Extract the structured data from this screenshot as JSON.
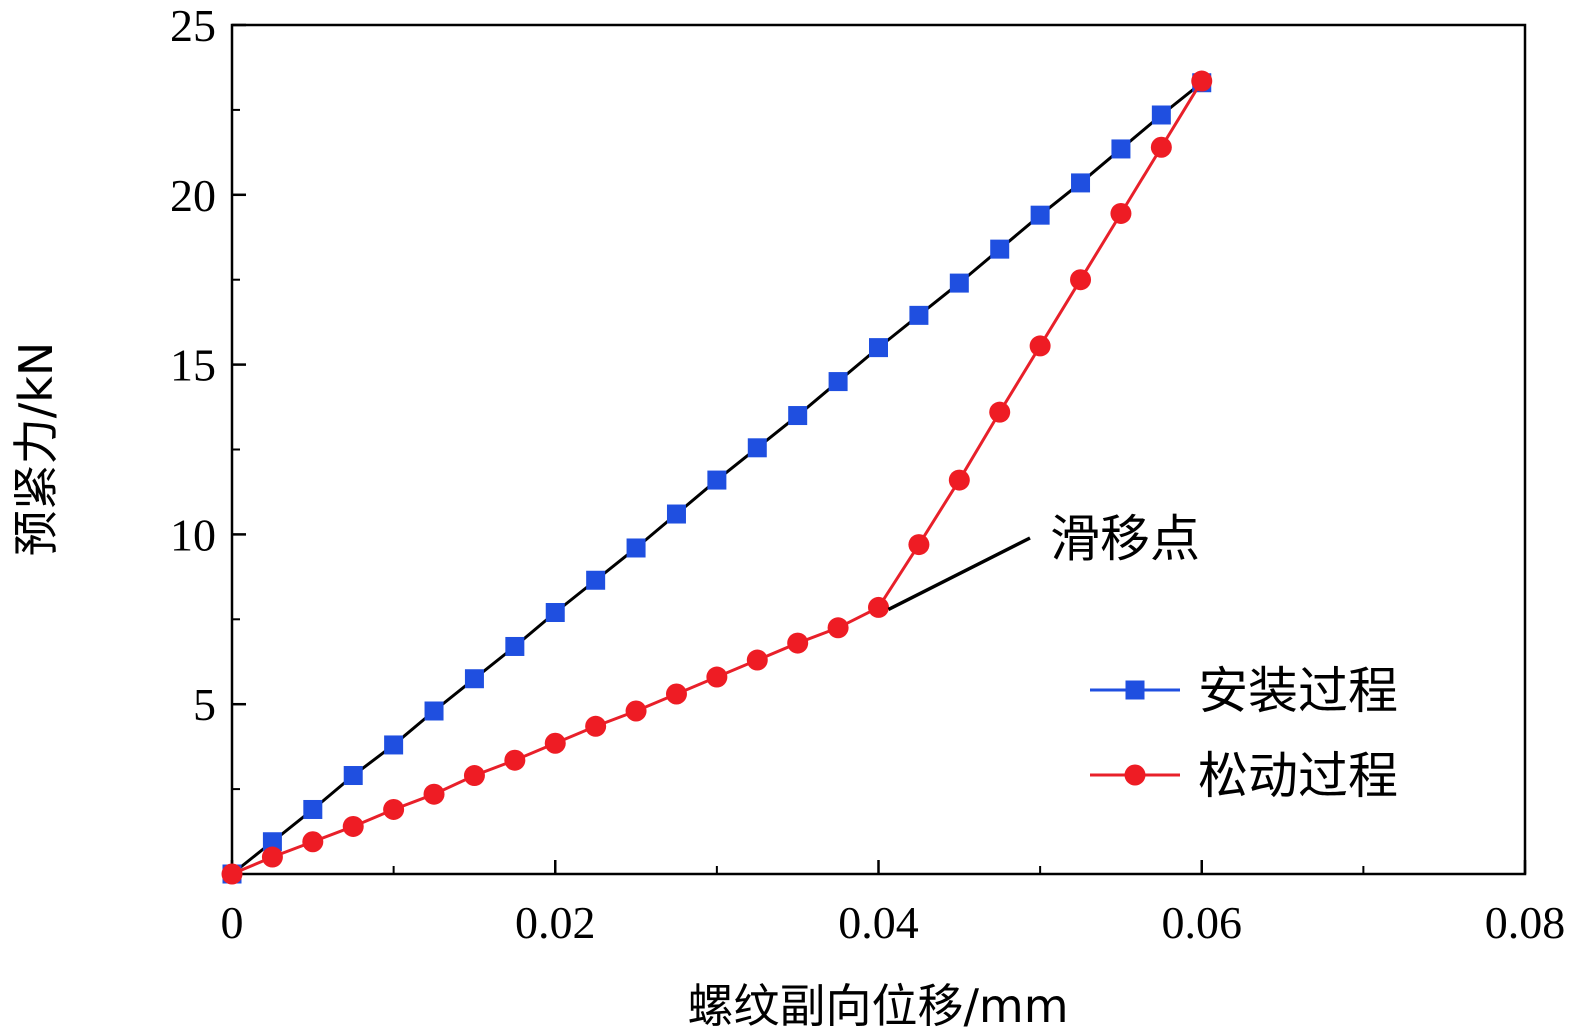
{
  "chart_data": {
    "type": "line",
    "title": "",
    "xlabel": "螺纹副向位移/mm",
    "ylabel": "预紧力/kN",
    "xlim": [
      0,
      0.08
    ],
    "ylim": [
      0,
      25
    ],
    "xticks": [
      0,
      0.02,
      0.04,
      0.06,
      0.08
    ],
    "xtick_labels": [
      "0",
      "0.02",
      "0.04",
      "0.06",
      "0.08"
    ],
    "yticks": [
      5,
      10,
      15,
      20,
      25
    ],
    "ytick_labels": [
      "5",
      "10",
      "15",
      "20",
      "25"
    ],
    "grid": false,
    "legend_position": "bottom-right",
    "series": [
      {
        "name": "安装过程",
        "marker": "square",
        "line_color": "#000000",
        "marker_color": "#1f4fe0",
        "x": [
          0,
          0.0025,
          0.005,
          0.0075,
          0.01,
          0.0125,
          0.015,
          0.0175,
          0.02,
          0.0225,
          0.025,
          0.0275,
          0.03,
          0.0325,
          0.035,
          0.0375,
          0.04,
          0.0425,
          0.045,
          0.0475,
          0.05,
          0.0525,
          0.055,
          0.0575,
          0.06
        ],
        "y": [
          0,
          0.95,
          1.9,
          2.9,
          3.8,
          4.8,
          5.75,
          6.7,
          7.7,
          8.65,
          9.6,
          10.6,
          11.6,
          12.55,
          13.5,
          14.5,
          15.5,
          16.45,
          17.4,
          18.4,
          19.4,
          20.35,
          21.35,
          22.35,
          23.3
        ]
      },
      {
        "name": "松动过程",
        "marker": "circle",
        "line_color": "#e8202a",
        "marker_color": "#ee1c24",
        "x": [
          0,
          0.0025,
          0.005,
          0.0075,
          0.01,
          0.0125,
          0.015,
          0.0175,
          0.02,
          0.0225,
          0.025,
          0.0275,
          0.03,
          0.0325,
          0.035,
          0.0375,
          0.04,
          0.0425,
          0.045,
          0.0475,
          0.05,
          0.0525,
          0.055,
          0.0575,
          0.06
        ],
        "y": [
          0,
          0.5,
          0.95,
          1.4,
          1.9,
          2.35,
          2.9,
          3.35,
          3.85,
          4.35,
          4.8,
          5.3,
          5.8,
          6.3,
          6.8,
          7.25,
          7.85,
          9.7,
          11.6,
          13.6,
          15.55,
          17.5,
          19.45,
          21.4,
          23.35
        ]
      }
    ],
    "annotations": [
      {
        "text": "滑移点",
        "target_x": 0.04,
        "target_y": 7.85
      }
    ]
  }
}
